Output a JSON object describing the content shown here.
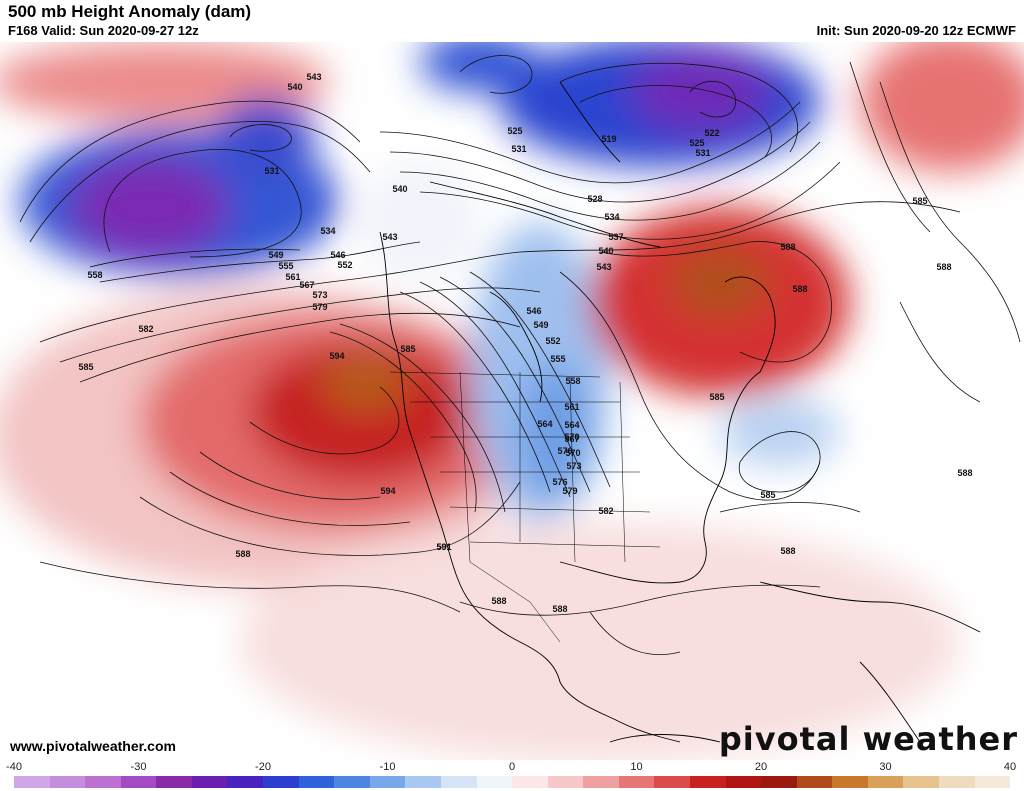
{
  "header": {
    "title": "500 mb Height Anomaly (dam)",
    "valid": "F168 Valid: Sun 2020-09-27 12z",
    "init": "Init: Sun 2020-09-20 12z ECMWF"
  },
  "footer": {
    "website": "www.pivotalweather.com",
    "logo_text": "pivotal weather"
  },
  "colorbar": {
    "ticks": [
      "-40",
      "-30",
      "-20",
      "-10",
      "0",
      "10",
      "20",
      "30",
      "40"
    ],
    "colors": [
      "#cfa6e6",
      "#c58ddd",
      "#bb70d2",
      "#a34bc2",
      "#8a2aa8",
      "#6a1fb0",
      "#4a22c0",
      "#2b3ecf",
      "#2f63db",
      "#4c86e2",
      "#78a8ea",
      "#a9c8f2",
      "#d5e4f7",
      "#f0f4fb",
      "#fbe7e7",
      "#f6c8c8",
      "#efa1a1",
      "#e77676",
      "#dc4b4b",
      "#c92020",
      "#b01414",
      "#9a1a10",
      "#b04a1c",
      "#c8772b",
      "#d9a05a",
      "#e6c38e",
      "#efdcbe",
      "#f5ead9"
    ]
  },
  "contour_labels": [
    {
      "text": "543"
    },
    {
      "text": "540"
    },
    {
      "text": "531"
    },
    {
      "text": "534"
    },
    {
      "text": "540"
    },
    {
      "text": "543"
    },
    {
      "text": "549"
    },
    {
      "text": "555"
    },
    {
      "text": "561"
    },
    {
      "text": "567"
    },
    {
      "text": "573"
    },
    {
      "text": "579"
    },
    {
      "text": "546"
    },
    {
      "text": "552"
    },
    {
      "text": "558"
    },
    {
      "text": "564"
    },
    {
      "text": "570"
    },
    {
      "text": "576"
    },
    {
      "text": "582"
    },
    {
      "text": "585"
    },
    {
      "text": "588"
    },
    {
      "text": "591"
    },
    {
      "text": "594"
    },
    {
      "text": "585"
    },
    {
      "text": "525"
    },
    {
      "text": "531"
    },
    {
      "text": "519"
    },
    {
      "text": "522"
    },
    {
      "text": "525"
    },
    {
      "text": "531"
    },
    {
      "text": "528"
    },
    {
      "text": "534"
    },
    {
      "text": "537"
    },
    {
      "text": "540"
    },
    {
      "text": "543"
    },
    {
      "text": "546"
    },
    {
      "text": "549"
    },
    {
      "text": "552"
    },
    {
      "text": "555"
    },
    {
      "text": "558"
    },
    {
      "text": "561"
    },
    {
      "text": "564"
    },
    {
      "text": "567"
    },
    {
      "text": "570"
    },
    {
      "text": "573"
    },
    {
      "text": "576"
    },
    {
      "text": "579"
    },
    {
      "text": "582"
    },
    {
      "text": "585"
    },
    {
      "text": "588"
    },
    {
      "text": "585"
    },
    {
      "text": "588"
    },
    {
      "text": "585"
    },
    {
      "text": "588"
    },
    {
      "text": "588"
    },
    {
      "text": "588"
    },
    {
      "text": "588"
    },
    {
      "text": "594"
    },
    {
      "text": "591"
    },
    {
      "text": "588"
    }
  ]
}
